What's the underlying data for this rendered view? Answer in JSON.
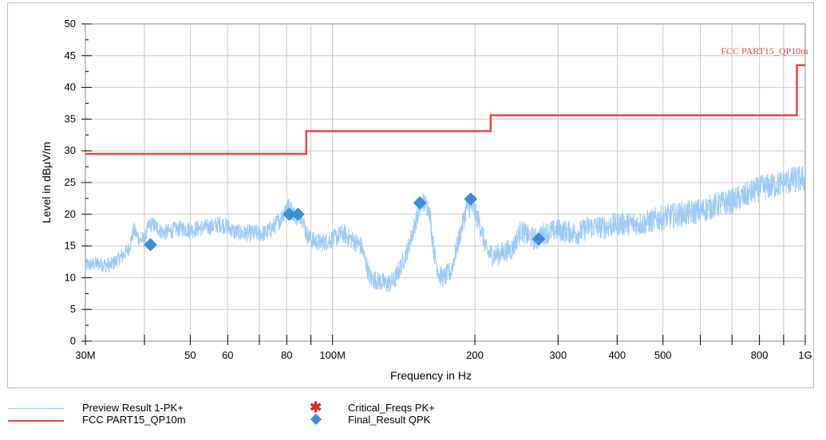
{
  "chart_data": {
    "type": "line",
    "xlabel": "Frequency in Hz",
    "ylabel": "Level in dBµV/m",
    "x_scale": "log",
    "xlim": [
      30000000,
      1000000000
    ],
    "ylim": [
      0,
      50
    ],
    "grid": true,
    "x_tick_labels": [
      {
        "value": 30000000,
        "label": "30M"
      },
      {
        "value": 50000000,
        "label": "50"
      },
      {
        "value": 60000000,
        "label": "60"
      },
      {
        "value": 80000000,
        "label": "80"
      },
      {
        "value": 100000000,
        "label": "100M"
      },
      {
        "value": 200000000,
        "label": "200"
      },
      {
        "value": 300000000,
        "label": "300"
      },
      {
        "value": 400000000,
        "label": "400"
      },
      {
        "value": 500000000,
        "label": "500"
      },
      {
        "value": 800000000,
        "label": "800"
      },
      {
        "value": 1000000000,
        "label": "1G"
      }
    ],
    "x_minor_ticks": [
      40000000,
      70000000,
      90000000,
      600000000,
      700000000,
      900000000
    ],
    "y_ticks": [
      0,
      5,
      10,
      15,
      20,
      25,
      30,
      35,
      40,
      45,
      50
    ],
    "limit_label": "FCC PART15_QP10m",
    "series": [
      {
        "name": "Preview Result 1-PK+",
        "color": "#9ccbf5",
        "style": "noisy-line",
        "points": [
          [
            30000000,
            12.0
          ],
          [
            32000000,
            12.2
          ],
          [
            34000000,
            12.0
          ],
          [
            36000000,
            13.5
          ],
          [
            37000000,
            14.5
          ],
          [
            38000000,
            17.5
          ],
          [
            39000000,
            16.0
          ],
          [
            40000000,
            16.0
          ],
          [
            41000000,
            18.5
          ],
          [
            42000000,
            18.2
          ],
          [
            44000000,
            17.0
          ],
          [
            46000000,
            17.5
          ],
          [
            48000000,
            17.8
          ],
          [
            50000000,
            17.5
          ],
          [
            52000000,
            17.8
          ],
          [
            55000000,
            18.0
          ],
          [
            58000000,
            18.5
          ],
          [
            60000000,
            18.0
          ],
          [
            62000000,
            17.2
          ],
          [
            65000000,
            17.0
          ],
          [
            68000000,
            17.0
          ],
          [
            72000000,
            17.0
          ],
          [
            75000000,
            18.0
          ],
          [
            78000000,
            19.5
          ],
          [
            80000000,
            21.5
          ],
          [
            82000000,
            20.5
          ],
          [
            84000000,
            19.5
          ],
          [
            86000000,
            20.0
          ],
          [
            88000000,
            17.0
          ],
          [
            90000000,
            16.0
          ],
          [
            94000000,
            15.5
          ],
          [
            100000000,
            16.0
          ],
          [
            105000000,
            17.0
          ],
          [
            110000000,
            16.0
          ],
          [
            115000000,
            15.0
          ],
          [
            120000000,
            10.0
          ],
          [
            125000000,
            9.5
          ],
          [
            130000000,
            9.0
          ],
          [
            135000000,
            9.5
          ],
          [
            140000000,
            12.0
          ],
          [
            145000000,
            15.0
          ],
          [
            150000000,
            19.0
          ],
          [
            155000000,
            22.0
          ],
          [
            160000000,
            21.0
          ],
          [
            164000000,
            14.0
          ],
          [
            168000000,
            10.5
          ],
          [
            172000000,
            10.0
          ],
          [
            178000000,
            11.0
          ],
          [
            185000000,
            16.0
          ],
          [
            192000000,
            21.0
          ],
          [
            198000000,
            21.0
          ],
          [
            205000000,
            18.5
          ],
          [
            212000000,
            14.0
          ],
          [
            220000000,
            13.5
          ],
          [
            230000000,
            14.0
          ],
          [
            240000000,
            14.5
          ],
          [
            250000000,
            17.5
          ],
          [
            260000000,
            16.5
          ],
          [
            270000000,
            16.0
          ],
          [
            280000000,
            17.0
          ],
          [
            300000000,
            17.5
          ],
          [
            330000000,
            17.0
          ],
          [
            350000000,
            18.0
          ],
          [
            380000000,
            18.0
          ],
          [
            400000000,
            18.5
          ],
          [
            450000000,
            18.5
          ],
          [
            500000000,
            19.5
          ],
          [
            550000000,
            20.0
          ],
          [
            600000000,
            20.5
          ],
          [
            650000000,
            21.5
          ],
          [
            700000000,
            22.0
          ],
          [
            750000000,
            23.0
          ],
          [
            800000000,
            24.0
          ],
          [
            850000000,
            24.5
          ],
          [
            900000000,
            25.0
          ],
          [
            950000000,
            25.5
          ],
          [
            1000000000,
            25.5
          ]
        ]
      },
      {
        "name": "FCC PART15_QP10m",
        "color": "#e84646",
        "style": "step-line",
        "points": [
          [
            30000000,
            29.5
          ],
          [
            88000000,
            29.5
          ],
          [
            88000000,
            33.1
          ],
          [
            216000000,
            33.1
          ],
          [
            216000000,
            35.6
          ],
          [
            960000000,
            35.6
          ],
          [
            960000000,
            43.5
          ],
          [
            1000000000,
            43.5
          ]
        ]
      },
      {
        "name": "Final_Result QPK",
        "color": "#3b8fd9",
        "style": "diamond-markers",
        "points": [
          [
            41200000,
            15.2
          ],
          [
            81000000,
            20.0
          ],
          [
            84500000,
            20.0
          ],
          [
            153000000,
            21.8
          ],
          [
            196000000,
            22.4
          ],
          [
            273000000,
            16.1
          ]
        ]
      }
    ],
    "legend": [
      {
        "label": "Preview Result 1-PK+",
        "color": "#9ccbf5",
        "symbol": "line"
      },
      {
        "label": "FCC PART15_QP10m",
        "color": "#e84646",
        "symbol": "line"
      },
      {
        "label": "Critical_Freqs PK+",
        "color": "#e8212b",
        "symbol": "star"
      },
      {
        "label": "Final_Result QPK",
        "color": "#3b8fd9",
        "symbol": "diamond"
      }
    ]
  }
}
